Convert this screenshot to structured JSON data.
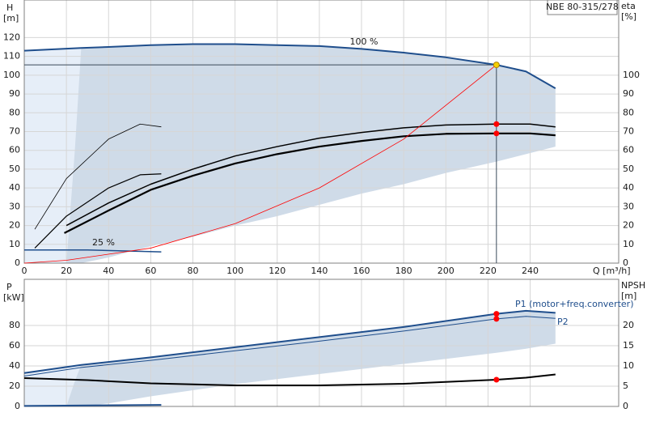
{
  "chart_data": [
    {
      "type": "line",
      "title": "NBE 80-315/278",
      "ylabel": "H",
      "yunit": "[m]",
      "y2label": "eta",
      "y2unit": "[%]",
      "xlabel": "Q [m³/h]",
      "xlim": [
        0,
        282
      ],
      "ylim": [
        0,
        140
      ],
      "y2lim": [
        0,
        140
      ],
      "grid": true,
      "xticks": [
        0,
        20,
        40,
        60,
        80,
        100,
        120,
        140,
        160,
        180,
        200,
        220,
        240
      ],
      "yticks": [
        0,
        10,
        20,
        30,
        40,
        50,
        60,
        70,
        80,
        90,
        100,
        110,
        120
      ],
      "y2ticks": [
        0,
        10,
        20,
        30,
        40,
        50,
        60,
        70,
        80,
        90,
        100
      ],
      "areas": [
        {
          "color": "#e6eef8",
          "x": [
            0,
            27
          ],
          "upper": [
            113,
            114.5
          ],
          "lower": [
            0,
            0
          ]
        },
        {
          "color": "#cfdbe8",
          "x": [
            20,
            24,
            27,
            40,
            60,
            80,
            100,
            120,
            140,
            160,
            180,
            200,
            224,
            238,
            252
          ],
          "upper": [
            0,
            60,
            114.5,
            115,
            116,
            116.5,
            116.5,
            116,
            115.5,
            114,
            112,
            109.5,
            105.5,
            102,
            93
          ],
          "lower": [
            0,
            0,
            0,
            3,
            9,
            14,
            20,
            25,
            31,
            37,
            42,
            48,
            54,
            58,
            62
          ]
        }
      ],
      "series": [
        {
          "name": "100 %",
          "color": "#1f4e8c",
          "width": 2,
          "x": [
            0,
            27,
            40,
            60,
            80,
            100,
            120,
            140,
            160,
            180,
            200,
            224,
            238,
            252
          ],
          "values": [
            113,
            114.5,
            115,
            116,
            116.5,
            116.5,
            116,
            115.5,
            114,
            112,
            109.5,
            105.5,
            102,
            93
          ]
        },
        {
          "name": "25 %",
          "color": "#1f4e8c",
          "width": 1.5,
          "x": [
            0,
            30,
            65
          ],
          "values": [
            7,
            7,
            6
          ]
        },
        {
          "color": "#000000",
          "width": 1.5,
          "x": [
            20,
            40,
            60,
            80,
            100,
            120,
            140,
            160,
            180,
            200,
            224,
            240,
            252
          ],
          "values": [
            20,
            32,
            42,
            50,
            57,
            62,
            66.5,
            69.5,
            72,
            73.5,
            74,
            74,
            72.5
          ]
        },
        {
          "color": "#000000",
          "width": 2.2,
          "x": [
            19,
            40,
            60,
            80,
            100,
            120,
            140,
            160,
            180,
            200,
            224,
            240,
            252
          ],
          "values": [
            16,
            28,
            39,
            46.5,
            53,
            58,
            62,
            65,
            67.5,
            68.8,
            69,
            69,
            68
          ]
        },
        {
          "color": "#000000",
          "width": 1.2,
          "x": [
            5,
            20,
            40,
            55,
            65
          ],
          "values": [
            8,
            25,
            40,
            47,
            47.5
          ]
        },
        {
          "color": "#000000",
          "width": 0.8,
          "x": [
            5,
            20,
            40,
            55,
            65
          ],
          "values": [
            18,
            45,
            66,
            74,
            72.5
          ]
        },
        {
          "color": "#ff0000",
          "width": 0.8,
          "x": [
            0,
            20,
            60,
            100,
            140,
            180,
            224
          ],
          "values": [
            0,
            1.5,
            8,
            21,
            40,
            66,
            105.5
          ]
        }
      ],
      "points": {
        "x": [
          224,
          224,
          224
        ],
        "values": [
          105.5,
          74,
          69
        ],
        "colors": [
          "#f5d000",
          "#ff0000",
          "#ff0000"
        ]
      }
    },
    {
      "type": "line",
      "ylabel": "P",
      "yunit": "[kW]",
      "y2label": "NPSH",
      "y2unit": "[m]",
      "ylim": [
        0,
        125.6
      ],
      "y2lim": [
        0,
        31.4
      ],
      "grid": true,
      "yticks": [
        0,
        20,
        40,
        60,
        80
      ],
      "y2ticks": [
        0,
        5,
        10,
        15,
        20
      ],
      "areas": [
        {
          "color": "#e6eef8",
          "x": [
            0,
            27
          ],
          "upper": [
            33,
            41
          ],
          "lower": [
            0,
            0
          ]
        },
        {
          "color": "#cfdbe8",
          "x": [
            20,
            24,
            27,
            40,
            60,
            100,
            140,
            180,
            224,
            238,
            252
          ],
          "upper": [
            0,
            25,
            41,
            43.5,
            48.5,
            58.5,
            68.5,
            78.5,
            91.5,
            94.5,
            92.5
          ],
          "lower": [
            0,
            0,
            0,
            3,
            10,
            22,
            32,
            42,
            53,
            57,
            62
          ]
        }
      ],
      "series": [
        {
          "name": "P1 (motor+freq.converter)",
          "color": "#1f4e8c",
          "width": 2,
          "x": [
            0,
            27,
            60,
            100,
            140,
            180,
            224,
            238,
            252
          ],
          "values": [
            33,
            41,
            48.5,
            58.5,
            68.5,
            78.5,
            91.5,
            94.5,
            92.5
          ]
        },
        {
          "name": "P2",
          "color": "#1f4e8c",
          "width": 1,
          "x": [
            0,
            27,
            60,
            100,
            140,
            180,
            224,
            238,
            252
          ],
          "values": [
            30,
            38.5,
            45.5,
            55,
            64.5,
            74.5,
            86.5,
            89,
            87
          ]
        },
        {
          "color": "#000000",
          "width": 2,
          "axis": "y2",
          "x": [
            0,
            30,
            60,
            100,
            140,
            180,
            224,
            238,
            252
          ],
          "values": [
            7,
            6.5,
            5.7,
            5.2,
            5.2,
            5.6,
            6.6,
            7.1,
            7.9
          ]
        },
        {
          "color": "#1f4e8c",
          "width": 2,
          "x": [
            0,
            65
          ],
          "values": [
            0.5,
            1.5
          ]
        }
      ],
      "points": {
        "x": [
          224,
          224,
          224
        ],
        "values": [
          91.5,
          86.5,
          6.6
        ],
        "axes": [
          "y",
          "y",
          "y2"
        ],
        "colors": [
          "#ff0000",
          "#ff0000",
          "#ff0000"
        ]
      }
    }
  ]
}
